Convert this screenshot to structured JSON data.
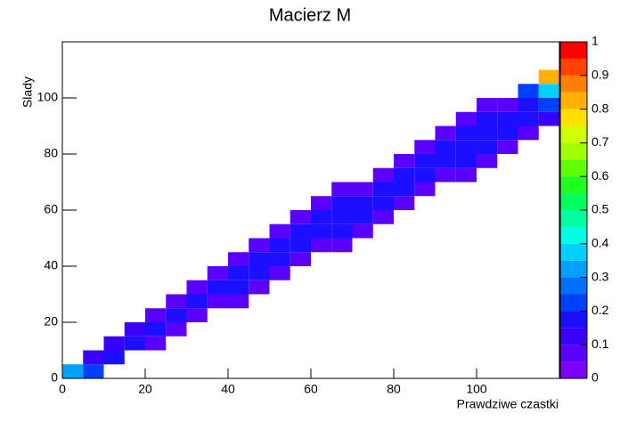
{
  "chart_data": {
    "type": "heatmap",
    "title": "Macierz M",
    "xlabel": "Prawdziwe czastki",
    "ylabel": "Slady",
    "xbins": [
      0,
      5,
      10,
      15,
      20,
      25,
      30,
      35,
      40,
      45,
      50,
      55,
      60,
      65,
      70,
      75,
      80,
      85,
      90,
      95,
      100,
      105,
      110,
      115,
      120
    ],
    "ybins": [
      0,
      5,
      10,
      15,
      20,
      25,
      30,
      35,
      40,
      45,
      50,
      55,
      60,
      65,
      70,
      75,
      80,
      85,
      90,
      95,
      100,
      105,
      110,
      115,
      120
    ],
    "xlim": [
      0,
      120
    ],
    "ylim": [
      0,
      120
    ],
    "xticks": [
      0,
      20,
      40,
      60,
      80,
      100
    ],
    "yticks": [
      0,
      20,
      40,
      60,
      80,
      100
    ],
    "zlim": [
      0,
      1
    ],
    "zticks": [
      0,
      0.1,
      0.2,
      0.3,
      0.4,
      0.5,
      0.6,
      0.7,
      0.8,
      0.9,
      1
    ],
    "palette": [
      "#7a00ff",
      "#5a00ff",
      "#3a00ff",
      "#1a10ff",
      "#0040ff",
      "#0070ff",
      "#00a0ff",
      "#00d0ff",
      "#00ffe0",
      "#00ffa0",
      "#00ff60",
      "#20ff20",
      "#60ff00",
      "#a0ff00",
      "#d0ff00",
      "#ffe000",
      "#ffb000",
      "#ff8000",
      "#ff4000",
      "#ff0000"
    ],
    "z": [
      [
        0.3,
        0.2,
        null,
        null,
        null,
        null,
        null,
        null,
        null,
        null,
        null,
        null,
        null,
        null,
        null,
        null,
        null,
        null,
        null,
        null,
        null,
        null,
        null,
        null
      ],
      [
        null,
        0.1,
        0.15,
        null,
        null,
        null,
        null,
        null,
        null,
        null,
        null,
        null,
        null,
        null,
        null,
        null,
        null,
        null,
        null,
        null,
        null,
        null,
        null,
        null
      ],
      [
        null,
        null,
        0.1,
        0.15,
        0.08,
        null,
        null,
        null,
        null,
        null,
        null,
        null,
        null,
        null,
        null,
        null,
        null,
        null,
        null,
        null,
        null,
        null,
        null,
        null
      ],
      [
        null,
        null,
        null,
        0.12,
        0.15,
        0.08,
        null,
        null,
        null,
        null,
        null,
        null,
        null,
        null,
        null,
        null,
        null,
        null,
        null,
        null,
        null,
        null,
        null,
        null
      ],
      [
        null,
        null,
        null,
        null,
        0.08,
        0.15,
        0.08,
        null,
        null,
        null,
        null,
        null,
        null,
        null,
        null,
        null,
        null,
        null,
        null,
        null,
        null,
        null,
        null,
        null
      ],
      [
        null,
        null,
        null,
        null,
        null,
        0.08,
        0.15,
        0.08,
        0.08,
        null,
        null,
        null,
        null,
        null,
        null,
        null,
        null,
        null,
        null,
        null,
        null,
        null,
        null,
        null
      ],
      [
        null,
        null,
        null,
        null,
        null,
        null,
        0.08,
        0.15,
        0.15,
        0.08,
        null,
        null,
        null,
        null,
        null,
        null,
        null,
        null,
        null,
        null,
        null,
        null,
        null,
        null
      ],
      [
        null,
        null,
        null,
        null,
        null,
        null,
        null,
        0.08,
        0.15,
        0.15,
        0.08,
        null,
        null,
        null,
        null,
        null,
        null,
        null,
        null,
        null,
        null,
        null,
        null,
        null
      ],
      [
        null,
        null,
        null,
        null,
        null,
        null,
        null,
        null,
        0.08,
        0.15,
        0.15,
        0.08,
        null,
        null,
        null,
        null,
        null,
        null,
        null,
        null,
        null,
        null,
        null,
        null
      ],
      [
        null,
        null,
        null,
        null,
        null,
        null,
        null,
        null,
        null,
        0.08,
        0.15,
        0.15,
        0.08,
        0.08,
        null,
        null,
        null,
        null,
        null,
        null,
        null,
        null,
        null,
        null
      ],
      [
        null,
        null,
        null,
        null,
        null,
        null,
        null,
        null,
        null,
        null,
        0.08,
        0.15,
        0.15,
        0.15,
        0.08,
        null,
        null,
        null,
        null,
        null,
        null,
        null,
        null,
        null
      ],
      [
        null,
        null,
        null,
        null,
        null,
        null,
        null,
        null,
        null,
        null,
        null,
        0.08,
        0.15,
        0.15,
        0.15,
        0.08,
        null,
        null,
        null,
        null,
        null,
        null,
        null,
        null
      ],
      [
        null,
        null,
        null,
        null,
        null,
        null,
        null,
        null,
        null,
        null,
        null,
        null,
        0.08,
        0.15,
        0.15,
        0.15,
        0.08,
        null,
        null,
        null,
        null,
        null,
        null,
        null
      ],
      [
        null,
        null,
        null,
        null,
        null,
        null,
        null,
        null,
        null,
        null,
        null,
        null,
        null,
        0.08,
        0.08,
        0.15,
        0.15,
        0.08,
        null,
        null,
        null,
        null,
        null,
        null
      ],
      [
        null,
        null,
        null,
        null,
        null,
        null,
        null,
        null,
        null,
        null,
        null,
        null,
        null,
        null,
        null,
        0.08,
        0.15,
        0.15,
        0.08,
        0.08,
        null,
        null,
        null,
        null
      ],
      [
        null,
        null,
        null,
        null,
        null,
        null,
        null,
        null,
        null,
        null,
        null,
        null,
        null,
        null,
        null,
        null,
        0.08,
        0.15,
        0.15,
        0.15,
        0.08,
        null,
        null,
        null
      ],
      [
        null,
        null,
        null,
        null,
        null,
        null,
        null,
        null,
        null,
        null,
        null,
        null,
        null,
        null,
        null,
        null,
        null,
        0.08,
        0.15,
        0.15,
        0.15,
        0.08,
        null,
        null
      ],
      [
        null,
        null,
        null,
        null,
        null,
        null,
        null,
        null,
        null,
        null,
        null,
        null,
        null,
        null,
        null,
        null,
        null,
        null,
        0.08,
        0.15,
        0.15,
        0.15,
        0.08,
        null
      ],
      [
        null,
        null,
        null,
        null,
        null,
        null,
        null,
        null,
        null,
        null,
        null,
        null,
        null,
        null,
        null,
        null,
        null,
        null,
        null,
        0.08,
        0.15,
        0.15,
        0.15,
        0.1
      ],
      [
        null,
        null,
        null,
        null,
        null,
        null,
        null,
        null,
        null,
        null,
        null,
        null,
        null,
        null,
        null,
        null,
        null,
        null,
        null,
        null,
        0.08,
        0.08,
        0.15,
        0.2
      ],
      [
        null,
        null,
        null,
        null,
        null,
        null,
        null,
        null,
        null,
        null,
        null,
        null,
        null,
        null,
        null,
        null,
        null,
        null,
        null,
        null,
        null,
        null,
        0.2,
        0.35
      ],
      [
        null,
        null,
        null,
        null,
        null,
        null,
        null,
        null,
        null,
        null,
        null,
        null,
        null,
        null,
        null,
        null,
        null,
        null,
        null,
        null,
        null,
        null,
        null,
        0.8
      ],
      [
        null,
        null,
        null,
        null,
        null,
        null,
        null,
        null,
        null,
        null,
        null,
        null,
        null,
        null,
        null,
        null,
        null,
        null,
        null,
        null,
        null,
        null,
        null,
        null
      ],
      [
        null,
        null,
        null,
        null,
        null,
        null,
        null,
        null,
        null,
        null,
        null,
        null,
        null,
        null,
        null,
        null,
        null,
        null,
        null,
        null,
        null,
        null,
        null,
        null
      ]
    ]
  }
}
